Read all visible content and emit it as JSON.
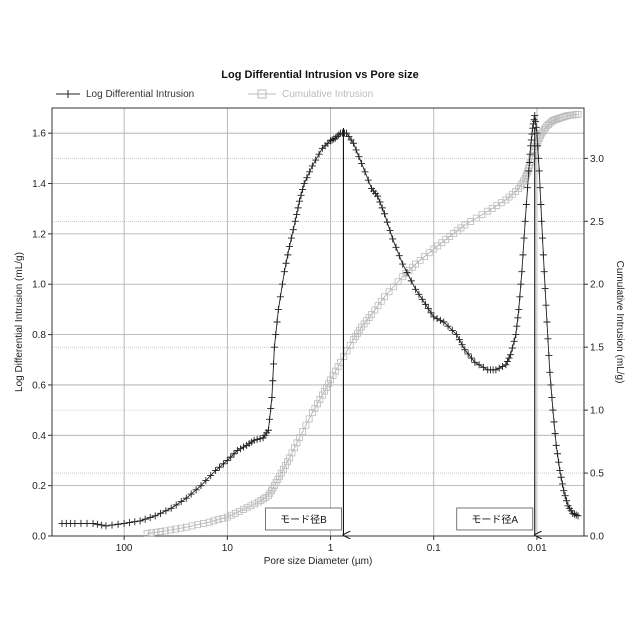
{
  "chart_data": {
    "type": "line",
    "title": "Log Differential Intrusion vs Pore size",
    "xlabel": "Pore size Diameter (µm)",
    "ylabel_left": "Log Differential Intrusion (mL/g)",
    "ylabel_right": "Cumulative Intrusion (mL/g)",
    "x_scale": "log",
    "x_reversed": true,
    "xlim": [
      500,
      0.0035
    ],
    "x_ticks": [
      "100",
      "10",
      "1",
      "0.1",
      "0.01"
    ],
    "ylim_left": [
      0,
      1.7
    ],
    "y_ticks_left": [
      "0.0",
      "0.2",
      "0.4",
      "0.6",
      "0.8",
      "1.0",
      "1.2",
      "1.4",
      "1.6"
    ],
    "ylim_right": [
      0,
      3.4
    ],
    "y_ticks_right": [
      "0.0",
      "0.5",
      "1.0",
      "1.5",
      "2.0",
      "2.5",
      "3.0"
    ],
    "grid": true,
    "legend_position": "top-left",
    "series": [
      {
        "name": "Log Differential Intrusion",
        "axis": "left",
        "marker": "plus",
        "color": "#222222",
        "points": [
          [
            400,
            0.05
          ],
          [
            300,
            0.05
          ],
          [
            200,
            0.05
          ],
          [
            150,
            0.04
          ],
          [
            100,
            0.05
          ],
          [
            70,
            0.06
          ],
          [
            50,
            0.08
          ],
          [
            35,
            0.11
          ],
          [
            25,
            0.15
          ],
          [
            18,
            0.2
          ],
          [
            13,
            0.26
          ],
          [
            10,
            0.3
          ],
          [
            8,
            0.34
          ],
          [
            6.5,
            0.36
          ],
          [
            5.5,
            0.38
          ],
          [
            4.5,
            0.39
          ],
          [
            4,
            0.42
          ],
          [
            3.7,
            0.55
          ],
          [
            3.5,
            0.75
          ],
          [
            3.2,
            0.9
          ],
          [
            2.8,
            1.05
          ],
          [
            2.5,
            1.15
          ],
          [
            2.2,
            1.25
          ],
          [
            2,
            1.33
          ],
          [
            1.8,
            1.4
          ],
          [
            1.5,
            1.47
          ],
          [
            1.2,
            1.54
          ],
          [
            1,
            1.57
          ],
          [
            0.9,
            1.58
          ],
          [
            0.8,
            1.6
          ],
          [
            0.7,
            1.6
          ],
          [
            0.6,
            1.56
          ],
          [
            0.5,
            1.48
          ],
          [
            0.4,
            1.38
          ],
          [
            0.35,
            1.35
          ],
          [
            0.3,
            1.28
          ],
          [
            0.25,
            1.18
          ],
          [
            0.2,
            1.08
          ],
          [
            0.15,
            0.98
          ],
          [
            0.12,
            0.92
          ],
          [
            0.1,
            0.87
          ],
          [
            0.08,
            0.85
          ],
          [
            0.06,
            0.8
          ],
          [
            0.05,
            0.74
          ],
          [
            0.04,
            0.69
          ],
          [
            0.03,
            0.66
          ],
          [
            0.025,
            0.66
          ],
          [
            0.02,
            0.68
          ],
          [
            0.018,
            0.72
          ],
          [
            0.016,
            0.8
          ],
          [
            0.015,
            0.9
          ],
          [
            0.014,
            1.05
          ],
          [
            0.013,
            1.25
          ],
          [
            0.012,
            1.45
          ],
          [
            0.0115,
            1.55
          ],
          [
            0.011,
            1.62
          ],
          [
            0.0105,
            1.67
          ],
          [
            0.01,
            1.6
          ],
          [
            0.0095,
            1.45
          ],
          [
            0.009,
            1.25
          ],
          [
            0.0085,
            1.05
          ],
          [
            0.008,
            0.85
          ],
          [
            0.0075,
            0.65
          ],
          [
            0.007,
            0.5
          ],
          [
            0.0065,
            0.36
          ],
          [
            0.006,
            0.26
          ],
          [
            0.0055,
            0.18
          ],
          [
            0.005,
            0.12
          ],
          [
            0.0045,
            0.09
          ],
          [
            0.004,
            0.08
          ]
        ]
      },
      {
        "name": "Cumulative Intrusion",
        "axis": "right",
        "marker": "square",
        "color": "#bbbbbb",
        "points": [
          [
            60,
            0.02
          ],
          [
            40,
            0.04
          ],
          [
            25,
            0.07
          ],
          [
            15,
            0.11
          ],
          [
            10,
            0.15
          ],
          [
            7,
            0.21
          ],
          [
            5,
            0.27
          ],
          [
            4,
            0.32
          ],
          [
            3.5,
            0.4
          ],
          [
            3,
            0.5
          ],
          [
            2.5,
            0.62
          ],
          [
            2,
            0.78
          ],
          [
            1.5,
            0.98
          ],
          [
            1.2,
            1.12
          ],
          [
            1,
            1.24
          ],
          [
            0.8,
            1.38
          ],
          [
            0.6,
            1.56
          ],
          [
            0.5,
            1.66
          ],
          [
            0.4,
            1.76
          ],
          [
            0.3,
            1.9
          ],
          [
            0.2,
            2.06
          ],
          [
            0.15,
            2.16
          ],
          [
            0.1,
            2.28
          ],
          [
            0.07,
            2.38
          ],
          [
            0.05,
            2.47
          ],
          [
            0.03,
            2.58
          ],
          [
            0.02,
            2.67
          ],
          [
            0.015,
            2.76
          ],
          [
            0.013,
            2.84
          ],
          [
            0.012,
            2.92
          ],
          [
            0.011,
            3.02
          ],
          [
            0.01,
            3.12
          ],
          [
            0.009,
            3.2
          ],
          [
            0.008,
            3.26
          ],
          [
            0.007,
            3.3
          ],
          [
            0.006,
            3.32
          ],
          [
            0.005,
            3.34
          ],
          [
            0.004,
            3.35
          ]
        ]
      }
    ],
    "annotations": [
      {
        "label": "モード径B",
        "x": 0.75
      },
      {
        "label": "モード径A",
        "x": 0.0105
      }
    ]
  },
  "colors": {
    "grid": "#aaaaaa",
    "axis": "#333333",
    "ldi": "#222222",
    "cum": "#bbbbbb"
  }
}
